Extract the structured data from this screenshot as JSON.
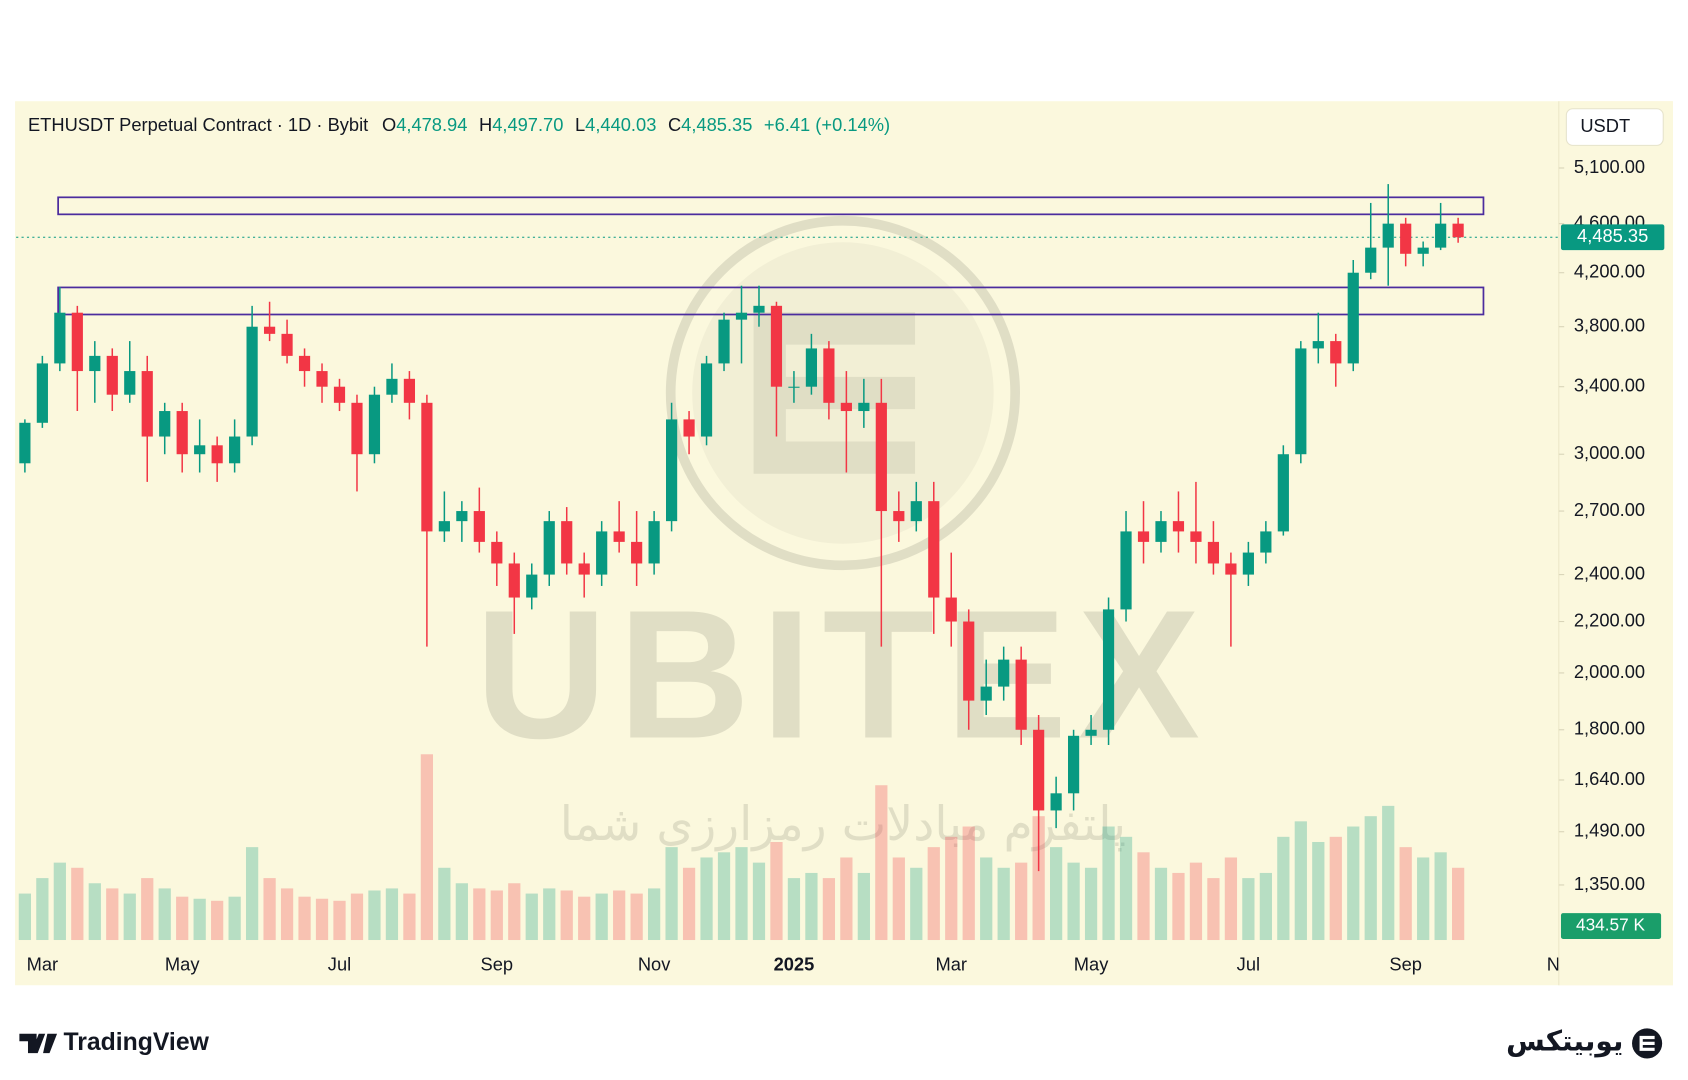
{
  "header": {
    "symbol": "ETHUSDT Perpetual Contract · 1D · Bybit",
    "ohlc": [
      {
        "key": "O",
        "value": "4,478.94"
      },
      {
        "key": "H",
        "value": "4,497.70"
      },
      {
        "key": "L",
        "value": "4,440.03"
      },
      {
        "key": "C",
        "value": "4,485.35"
      }
    ],
    "change": "+6.41 (+0.14%)"
  },
  "chart_data": {
    "type": "candlestick",
    "currency": "USDT",
    "categories": [
      null,
      "Mar",
      null,
      null,
      null,
      null,
      null,
      null,
      null,
      "May",
      null,
      null,
      null,
      null,
      null,
      null,
      null,
      null,
      "Jul",
      null,
      null,
      null,
      null,
      null,
      null,
      null,
      null,
      "Sep",
      null,
      null,
      null,
      null,
      null,
      null,
      null,
      null,
      "Nov",
      null,
      null,
      null,
      null,
      null,
      null,
      null,
      "2025",
      null,
      null,
      null,
      null,
      null,
      null,
      null,
      null,
      "Mar",
      null,
      null,
      null,
      null,
      null,
      null,
      null,
      "May",
      null,
      null,
      null,
      null,
      null,
      null,
      null,
      null,
      "Jul",
      null,
      null,
      null,
      null,
      null,
      null,
      null,
      null,
      "Sep",
      null,
      null,
      null,
      null,
      null,
      null,
      null,
      null,
      "Nov"
    ],
    "open": [
      2950,
      3180,
      3550,
      3900,
      3500,
      3600,
      3350,
      3500,
      3100,
      3250,
      3000,
      3050,
      2950,
      3100,
      3800,
      3750,
      3600,
      3500,
      3400,
      3300,
      3000,
      3350,
      3450,
      3300,
      2600,
      2650,
      2700,
      2550,
      2450,
      2300,
      2400,
      2650,
      2450,
      2400,
      2600,
      2550,
      2450,
      2650,
      3200,
      3100,
      3550,
      3850,
      3900,
      3950,
      3400,
      3400,
      3650,
      3300,
      3250,
      3300,
      2700,
      2650,
      2750,
      2300,
      2200,
      1900,
      1950,
      2050,
      1800,
      1550,
      1600,
      1780,
      1800,
      2250,
      2600,
      2550,
      2650,
      2600,
      2550,
      2450,
      2400,
      2500,
      2600,
      3000,
      3650,
      3700,
      3550,
      4200,
      4400,
      4600,
      4350,
      4400,
      4600,
      null,
      null,
      null,
      null,
      null,
      null
    ],
    "high": [
      3200,
      3600,
      4090,
      3950,
      3700,
      3650,
      3700,
      3600,
      3300,
      3300,
      3200,
      3100,
      3200,
      3950,
      3980,
      3850,
      3650,
      3550,
      3450,
      3350,
      3400,
      3550,
      3500,
      3350,
      2800,
      2750,
      2820,
      2600,
      2500,
      2450,
      2700,
      2720,
      2500,
      2650,
      2750,
      2700,
      2700,
      3300,
      3250,
      3600,
      3900,
      4100,
      4100,
      3980,
      3500,
      3750,
      3700,
      3500,
      3450,
      3450,
      2800,
      2850,
      2850,
      2500,
      2250,
      2050,
      2100,
      2100,
      1850,
      1650,
      1800,
      1850,
      2300,
      2700,
      2750,
      2700,
      2800,
      2850,
      2650,
      2500,
      2550,
      2650,
      3050,
      3700,
      3900,
      3750,
      4300,
      4780,
      4950,
      4650,
      4450,
      4780,
      4650,
      null,
      null,
      null,
      null,
      null,
      null
    ],
    "low": [
      2900,
      3150,
      3500,
      3250,
      3300,
      3250,
      3300,
      2850,
      3000,
      2900,
      2900,
      2850,
      2900,
      3050,
      3700,
      3550,
      3400,
      3300,
      3250,
      2800,
      2950,
      3300,
      3200,
      2100,
      2550,
      2550,
      2500,
      2350,
      2150,
      2250,
      2350,
      2400,
      2300,
      2350,
      2500,
      2350,
      2400,
      2600,
      3000,
      3050,
      3500,
      3550,
      3800,
      3100,
      3300,
      3350,
      3200,
      2900,
      3150,
      2100,
      2550,
      2600,
      2150,
      2100,
      1800,
      1850,
      1900,
      1750,
      1385,
      1500,
      1550,
      1750,
      1750,
      2200,
      2450,
      2500,
      2500,
      2450,
      2400,
      2100,
      2350,
      2450,
      2580,
      2950,
      3550,
      3400,
      3500,
      4150,
      4100,
      4250,
      4250,
      4380,
      4440,
      null,
      null,
      null,
      null,
      null,
      null
    ],
    "close": [
      3180,
      3550,
      3900,
      3500,
      3600,
      3350,
      3500,
      3100,
      3250,
      3000,
      3050,
      2950,
      3100,
      3800,
      3750,
      3600,
      3500,
      3400,
      3300,
      3000,
      3350,
      3450,
      3300,
      2600,
      2650,
      2700,
      2550,
      2450,
      2300,
      2400,
      2650,
      2450,
      2400,
      2600,
      2550,
      2450,
      2650,
      3200,
      3100,
      3550,
      3850,
      3900,
      3950,
      3400,
      3400,
      3650,
      3300,
      3250,
      3300,
      2700,
      2650,
      2750,
      2300,
      2200,
      1900,
      1950,
      2050,
      1800,
      1550,
      1600,
      1780,
      1800,
      2250,
      2600,
      2550,
      2650,
      2600,
      2550,
      2450,
      2400,
      2500,
      2600,
      3000,
      3650,
      3700,
      3550,
      4200,
      4400,
      4600,
      4350,
      4400,
      4600,
      4485.35,
      null,
      null,
      null,
      null,
      null,
      null
    ],
    "volume": [
      450,
      600,
      750,
      700,
      550,
      500,
      450,
      600,
      500,
      420,
      400,
      380,
      420,
      900,
      600,
      500,
      420,
      400,
      380,
      450,
      480,
      500,
      450,
      1800,
      700,
      550,
      500,
      480,
      550,
      450,
      500,
      480,
      420,
      450,
      480,
      450,
      500,
      900,
      700,
      800,
      850,
      900,
      750,
      950,
      600,
      650,
      600,
      800,
      650,
      1500,
      800,
      700,
      900,
      1000,
      1100,
      800,
      700,
      750,
      1200,
      900,
      750,
      700,
      1100,
      1000,
      850,
      700,
      650,
      750,
      600,
      800,
      600,
      650,
      1000,
      1150,
      950,
      1000,
      1100,
      1200,
      1300,
      900,
      800,
      850,
      700,
      null,
      null,
      null,
      null,
      null,
      null
    ],
    "vlim": [
      0,
      2400
    ],
    "volume_label": "434.57 K",
    "ylim": [
      1219,
      5772
    ],
    "log_scale": true,
    "grid": false,
    "yticks": [
      {
        "value": 1350,
        "label": "1,350.00"
      },
      {
        "value": 1490,
        "label": "1,490.00"
      },
      {
        "value": 1640,
        "label": "1,640.00"
      },
      {
        "value": 1800,
        "label": "1,800.00"
      },
      {
        "value": 2000,
        "label": "2,000.00"
      },
      {
        "value": 2200,
        "label": "2,200.00"
      },
      {
        "value": 2400,
        "label": "2,400.00"
      },
      {
        "value": 2700,
        "label": "2,700.00"
      },
      {
        "value": 3000,
        "label": "3,000.00"
      },
      {
        "value": 3400,
        "label": "3,400.00"
      },
      {
        "value": 3800,
        "label": "3,800.00"
      },
      {
        "value": 4200,
        "label": "4,200.00"
      },
      {
        "value": 4600,
        "label": "4,600.00"
      },
      {
        "value": 5100,
        "label": "5,100.00"
      }
    ],
    "up_color": "#089981",
    "down_color": "#f23645",
    "zone_color": "#4b2c9e",
    "zones": [
      {
        "top": 4830,
        "bottom": 4680
      },
      {
        "top": 4087,
        "bottom": 3887
      }
    ],
    "last_price": {
      "value": 4485.35,
      "label": "4,485.35"
    }
  },
  "watermark": {
    "brand": "UBITEX",
    "tagline": "پلتفرم مبادلات رمزارزی شما"
  },
  "footer": {
    "left": "TradingView",
    "right": "یوبیتکس"
  }
}
